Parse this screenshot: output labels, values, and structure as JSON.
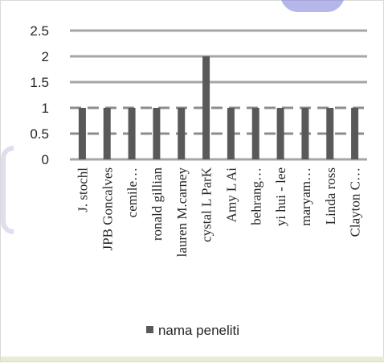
{
  "chart_data": {
    "type": "bar",
    "categories": [
      "J. stochl",
      "JPB Goncalves",
      "cemile…",
      "ronald gillian",
      "lauren M.carney",
      "cystal L ParK",
      "Amy L Ai",
      "behrang…",
      "yi hui - lee",
      "maryam…",
      "Linda ross",
      "Clayton C…"
    ],
    "series": [
      {
        "name": "nama peneliti",
        "values": [
          1,
          1,
          1,
          1,
          1,
          2,
          1,
          1,
          1,
          1,
          1,
          1
        ]
      }
    ],
    "yticks": [
      "0",
      "0.5",
      "1",
      "1.5",
      "2",
      "2.5"
    ],
    "ylim": [
      0,
      2.5
    ],
    "grid": true,
    "legend_position": "bottom",
    "colors": {
      "bar": "#595959",
      "grid": "#a6a6a6",
      "dashed_grid": "#8c8c8c"
    }
  }
}
